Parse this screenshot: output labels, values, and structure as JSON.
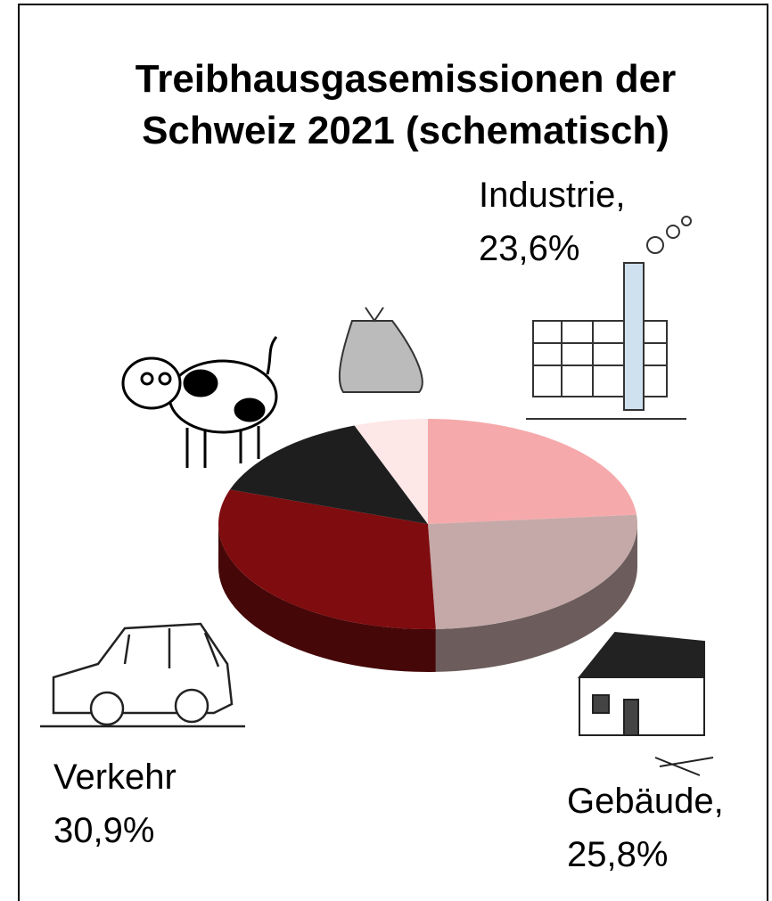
{
  "chart_data": {
    "type": "pie",
    "title": "Treibhausgasemissionen der Schweiz 2021 (schematisch)",
    "categories": [
      "Industrie,",
      "Gebäude,",
      "Verkehr",
      null,
      null
    ],
    "values": [
      23.6,
      25.8,
      30.9,
      14.0,
      5.7
    ],
    "value_labels": [
      "23,6%",
      "25,8%",
      "30,9%",
      null,
      null
    ],
    "colors": [
      "#f6a9ab",
      "#c4a9a8",
      "#7f0c0f",
      "#1e1e1e",
      "#fde7e7"
    ]
  }
}
